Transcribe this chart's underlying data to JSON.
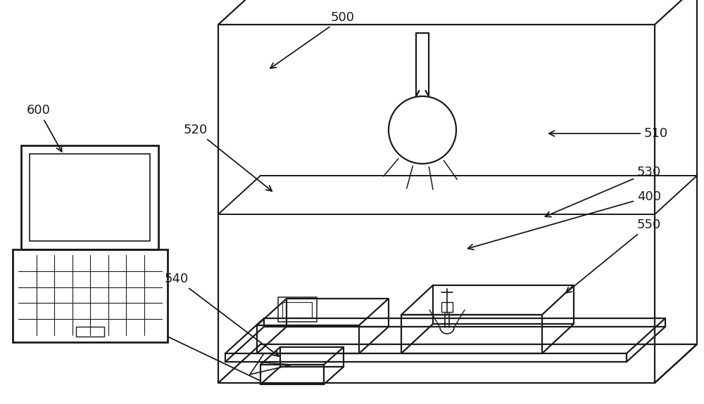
{
  "bg_color": "#ffffff",
  "line_color": "#1a1a1a",
  "label_fontsize": 13,
  "figsize": [
    10.0,
    5.75
  ],
  "dpi": 100
}
